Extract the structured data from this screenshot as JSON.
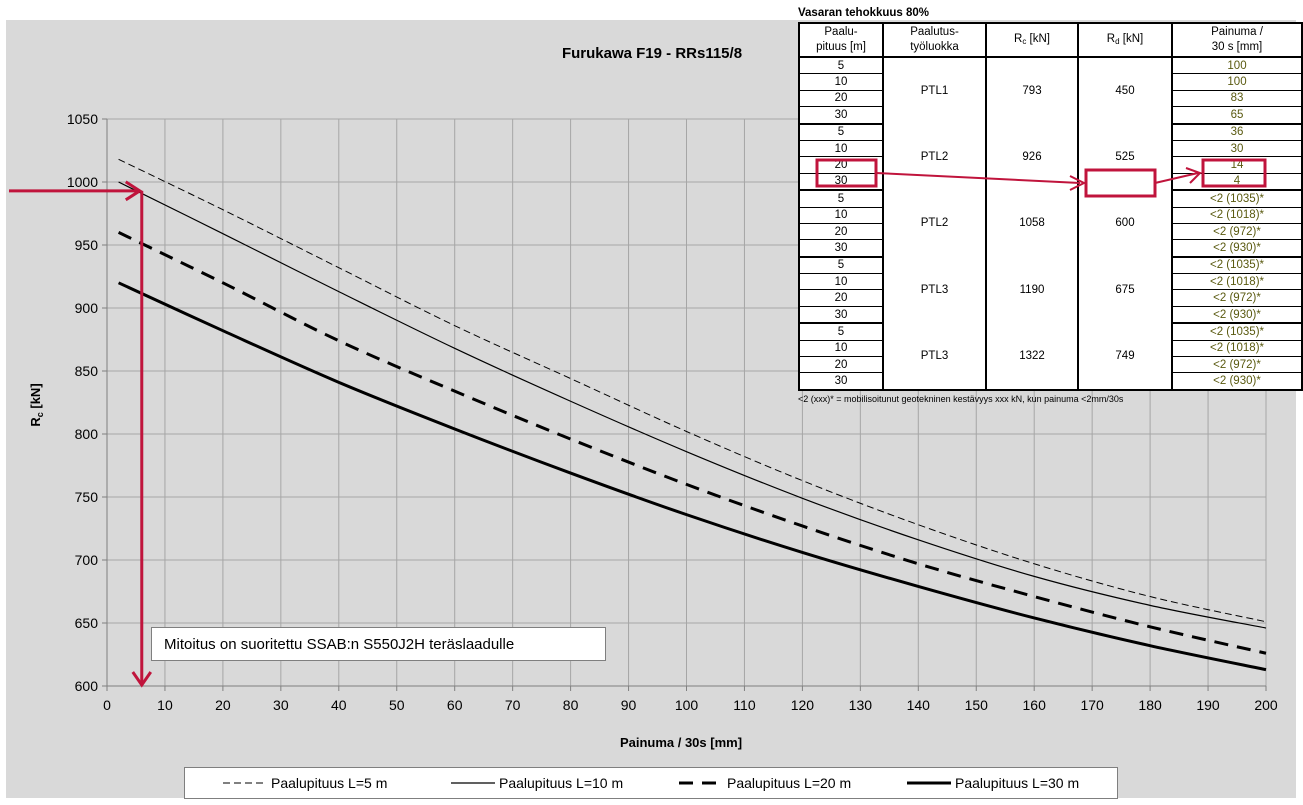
{
  "chart_data": {
    "type": "line",
    "title": "Furukawa F19 - RRs115/8",
    "xlabel": "Painuma / 30s [mm]",
    "ylabel": "R",
    "ylabel_sub": "c",
    "ylabel_unit": " [kN]",
    "xlim": [
      0,
      200
    ],
    "ylim": [
      600,
      1050
    ],
    "x_ticks": [
      0,
      10,
      20,
      30,
      40,
      50,
      60,
      70,
      80,
      90,
      100,
      110,
      120,
      130,
      140,
      150,
      160,
      170,
      180,
      190,
      200
    ],
    "y_ticks": [
      600,
      650,
      700,
      750,
      800,
      850,
      900,
      950,
      1000,
      1050
    ],
    "grid": true,
    "legend_position": "bottom",
    "series": [
      {
        "name": "Paalupituus L=5 m",
        "style": "thin-dashed",
        "x": [
          2,
          20,
          40,
          60,
          80,
          100,
          120,
          140,
          160,
          180,
          200
        ],
        "y": [
          1018,
          978,
          932,
          886,
          844,
          802,
          763,
          728,
          697,
          671,
          651
        ]
      },
      {
        "name": "Paalupituus L=10 m",
        "style": "thin-solid",
        "x": [
          2,
          20,
          40,
          60,
          80,
          100,
          120,
          140,
          160,
          180,
          200
        ],
        "y": [
          1000,
          959,
          913,
          868,
          826,
          786,
          749,
          716,
          687,
          664,
          646
        ]
      },
      {
        "name": "Paalupituus L=20 m",
        "style": "thick-dashed",
        "x": [
          2,
          20,
          40,
          60,
          80,
          100,
          120,
          140,
          160,
          180,
          200
        ],
        "y": [
          960,
          920,
          874,
          834,
          796,
          760,
          727,
          697,
          671,
          647,
          626
        ]
      },
      {
        "name": "Paalupituus L=30 m",
        "style": "thick-solid",
        "x": [
          2,
          20,
          40,
          60,
          80,
          100,
          120,
          140,
          160,
          180,
          200
        ],
        "y": [
          920,
          882,
          841,
          804,
          769,
          736,
          706,
          679,
          654,
          632,
          613
        ]
      }
    ],
    "markers": {
      "x": 6,
      "y": 993
    },
    "colors": {
      "marker": "#c0143c",
      "plot_bg": "#d9d9d9",
      "grid": "#a6a6a6"
    }
  },
  "annotation": "Mitoitus on suoritettu SSAB:n S550J2H teräslaadulle",
  "table": {
    "caption": "Vasaran tehokkuus 80%",
    "headers": {
      "length_1": "Paalu-",
      "length_2": "pituus [m]",
      "class_1": "Paalutus-",
      "class_2": "työluokka",
      "rc": "R",
      "rc_sub": "c",
      "rc_unit": " [kN]",
      "rd": "R",
      "rd_sub": "d",
      "rd_unit": " [kN]",
      "pen_1": "Painuma /",
      "pen_2": "30 s [mm]"
    },
    "groups": [
      {
        "class": "PTL1",
        "rc": "793",
        "rd": "450",
        "rows": [
          {
            "len": "5",
            "pen": "100"
          },
          {
            "len": "10",
            "pen": "100"
          },
          {
            "len": "20",
            "pen": "83"
          },
          {
            "len": "30",
            "pen": "65"
          }
        ]
      },
      {
        "class": "PTL2",
        "rc": "926",
        "rd": "525",
        "rows": [
          {
            "len": "5",
            "pen": "36"
          },
          {
            "len": "10",
            "pen": "30"
          },
          {
            "len": "20",
            "pen": "14"
          },
          {
            "len": "30",
            "pen": "4"
          }
        ]
      },
      {
        "class": "PTL2",
        "rc": "1058",
        "rd": "600",
        "rows": [
          {
            "len": "5",
            "pen": "<2 (1035)*"
          },
          {
            "len": "10",
            "pen": "<2 (1018)*"
          },
          {
            "len": "20",
            "pen": "<2 (972)*"
          },
          {
            "len": "30",
            "pen": "<2 (930)*"
          }
        ]
      },
      {
        "class": "PTL3",
        "rc": "1190",
        "rd": "675",
        "rows": [
          {
            "len": "5",
            "pen": "<2 (1035)*"
          },
          {
            "len": "10",
            "pen": "<2 (1018)*"
          },
          {
            "len": "20",
            "pen": "<2 (972)*"
          },
          {
            "len": "30",
            "pen": "<2 (930)*"
          }
        ]
      },
      {
        "class": "PTL3",
        "rc": "1322",
        "rd": "749",
        "rows": [
          {
            "len": "5",
            "pen": "<2 (1035)*"
          },
          {
            "len": "10",
            "pen": "<2 (1018)*"
          },
          {
            "len": "20",
            "pen": "<2 (972)*"
          },
          {
            "len": "30",
            "pen": "<2 (930)*"
          }
        ]
      }
    ],
    "footnote": "<2 (xxx)* = mobilisoitunut geotekninen kestävyys xxx kN, kun painuma <2mm/30s"
  }
}
